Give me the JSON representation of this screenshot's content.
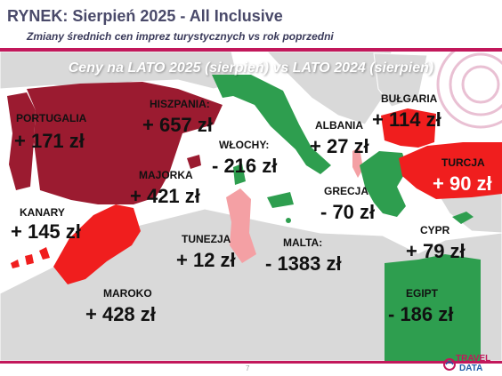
{
  "header": {
    "title": "RYNEK: Sierpień 2025 - All Inclusive",
    "subtitle": "Zmiany średnich cen imprez turystycznych vs rok poprzedni"
  },
  "banner": "Ceny na LATO 2025 (sierpień) vs  LATO 2024 (sierpień)",
  "countries": {
    "portugalia": {
      "name": "PORTUGALIA",
      "value": "+ 171 zł"
    },
    "hiszpania": {
      "name": "HISZPANIA:",
      "value": "+ 657 zł"
    },
    "majorka": {
      "name": "MAJORKA",
      "value": "+ 421 zł"
    },
    "kanary": {
      "name": "KANARY",
      "value": "+ 145 zł"
    },
    "maroko": {
      "name": "MAROKO",
      "value": "+ 428 zł"
    },
    "tunezja": {
      "name": "TUNEZJA",
      "value": "+ 12 zł"
    },
    "wlochy": {
      "name": "WŁOCHY:",
      "value": "- 216 zł"
    },
    "malta": {
      "name": "MALTA:",
      "value": "- 1383 zł"
    },
    "albania": {
      "name": "ALBANIA",
      "value": "+ 27 zł"
    },
    "grecja": {
      "name": "GRECJA",
      "value": "- 70 zł"
    },
    "bulgaria": {
      "name": "BUŁGARIA",
      "value": "+ 114 zł"
    },
    "turcja": {
      "name": "TURCJA",
      "value": "+ 90 zł"
    },
    "cypr": {
      "name": "CYPR",
      "value": "+ 79 zł"
    },
    "egipt": {
      "name": "EGIPT",
      "value": "- 186 zł"
    }
  },
  "footer": {
    "page_number": "7",
    "logo_line1": "TRAVEL",
    "logo_line2": "DATA"
  },
  "colors": {
    "accent": "#c2185b",
    "increase_dark": "#9b1b30",
    "increase": "#f01e1e",
    "increase_light": "#f4a0a4",
    "decrease": "#2e9e4f",
    "land": "#d9d9d9",
    "sea": "#ffffff"
  }
}
